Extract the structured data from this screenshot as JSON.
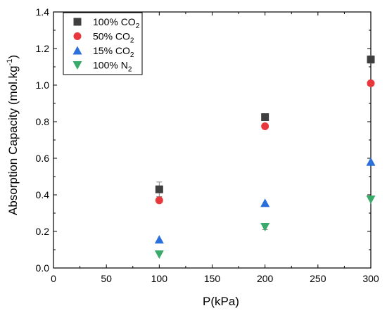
{
  "chart_data": {
    "type": "scatter",
    "x": [
      100,
      200,
      300
    ],
    "xlabel": "P(kPa)",
    "ylabel": "Absorption Capacity (mol.kg",
    "ylabel_sup": "-1",
    "ylabel_close": ")",
    "xlim": [
      0,
      300
    ],
    "ylim": [
      0.0,
      1.4
    ],
    "xticks": [
      0,
      50,
      100,
      150,
      200,
      250,
      300
    ],
    "yticks": [
      "0.0",
      "0.2",
      "0.4",
      "0.6",
      "0.8",
      "1.0",
      "1.2",
      "1.4"
    ],
    "grid": false,
    "legend_position": "top-left",
    "series": [
      {
        "name": "100% CO",
        "sub": "2",
        "marker": "square",
        "color": "#3f3f3f",
        "values": [
          0.43,
          0.825,
          1.14
        ],
        "err": [
          0.04,
          0.015,
          0.02
        ]
      },
      {
        "name": "50% CO",
        "sub": "2",
        "marker": "circle",
        "color": "#e8383d",
        "values": [
          0.37,
          0.775,
          1.01
        ],
        "err": [
          0,
          0,
          0
        ]
      },
      {
        "name": "15% CO",
        "sub": "2",
        "marker": "triangle-up",
        "color": "#2a6fdb",
        "values": [
          0.155,
          0.355,
          0.58
        ],
        "err": [
          0,
          0,
          0
        ]
      },
      {
        "name": "100% N",
        "sub": "2",
        "marker": "triangle-down",
        "color": "#3aaa6a",
        "values": [
          0.075,
          0.225,
          0.375
        ],
        "err": [
          0,
          0.015,
          0
        ]
      }
    ]
  }
}
